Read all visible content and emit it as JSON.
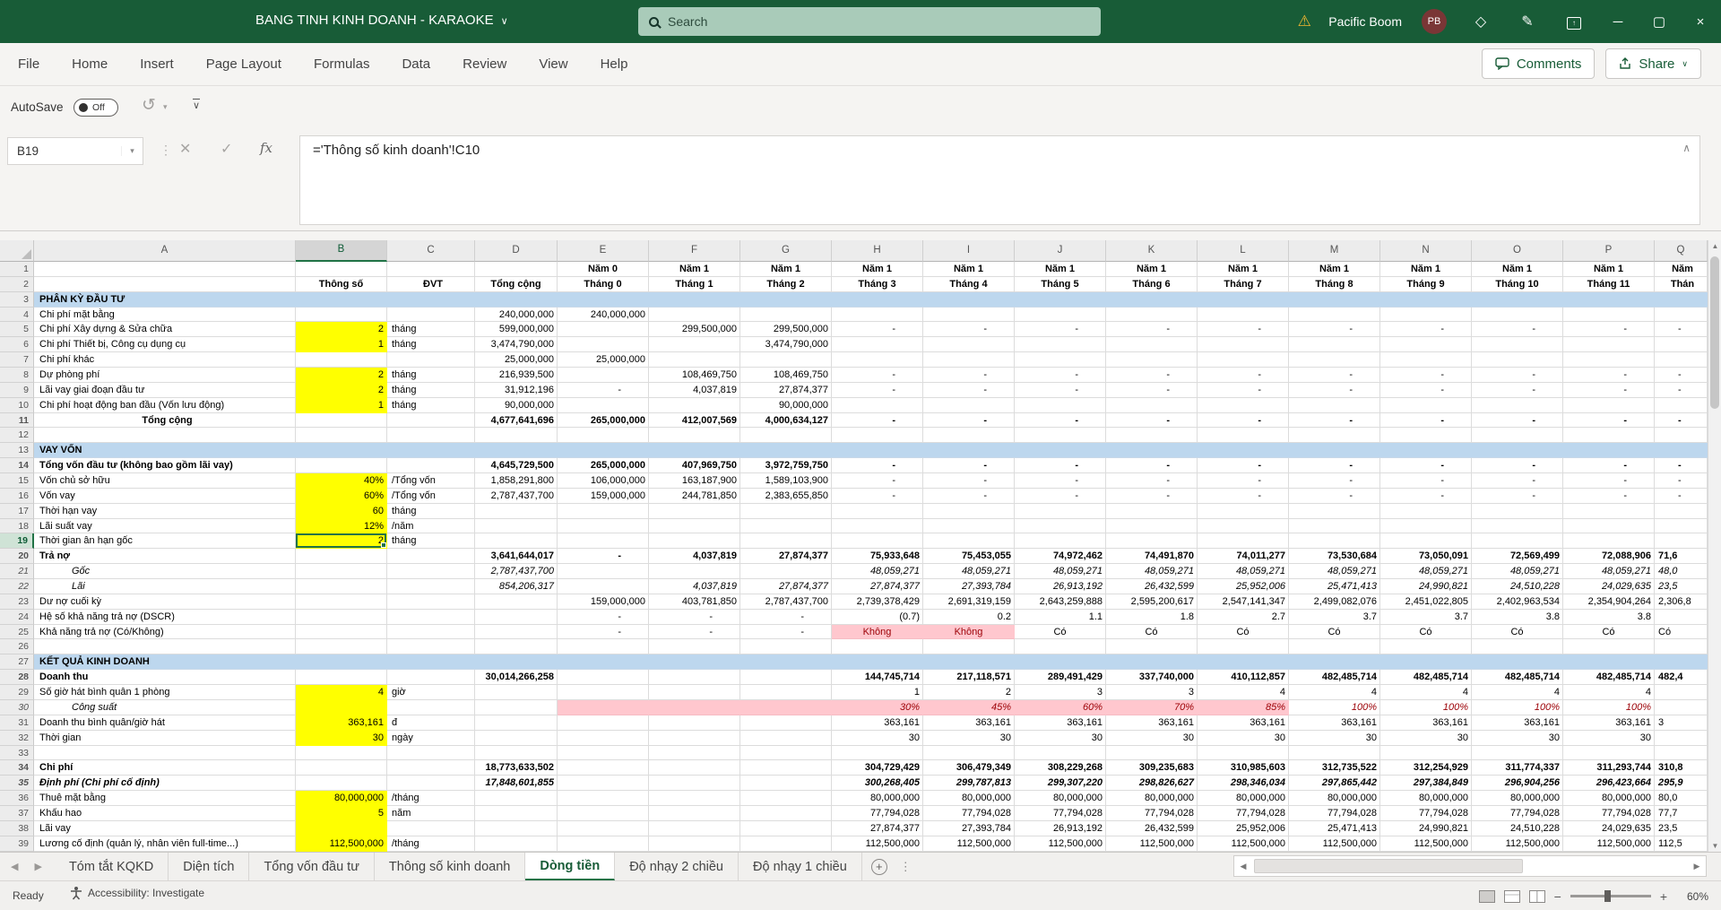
{
  "titlebar": {
    "title": "BANG TINH KINH DOANH - KARAOKE",
    "search_placeholder": "Search",
    "user_name": "Pacific Boom",
    "avatar_initials": "PB"
  },
  "menubar": {
    "tabs": [
      "File",
      "Home",
      "Insert",
      "Page Layout",
      "Formulas",
      "Data",
      "Review",
      "View",
      "Help"
    ],
    "comments_label": "Comments",
    "share_label": "Share"
  },
  "quickbar": {
    "autosave_label": "AutoSave",
    "autosave_state": "Off"
  },
  "formula_bar": {
    "name_box": "B19",
    "formula": "='Thông số kinh doanh'!C10"
  },
  "glyphs": {
    "warning": "⚠",
    "gem": "◇",
    "pen": "✎",
    "ribbon_arrow": "↑",
    "minimize": "─",
    "restore": "▢",
    "close": "×",
    "chevron_down": "∨",
    "chevron_small": "▾",
    "collapse": "∧",
    "undo": "↺",
    "dots_v": "⋮",
    "cancel": "✕",
    "check": "✓",
    "fx": "fx",
    "left": "◀",
    "right": "▶",
    "up": "▲",
    "down": "▼",
    "plus": "+",
    "minus": "−"
  },
  "colors": {
    "excel_green": "#217346",
    "titlebar_green": "#185c37",
    "section_blue": "#BDD7EE",
    "input_yellow": "#FFFF00",
    "bad_pink": "#FFC7CE",
    "bad_red": "#9C0006"
  },
  "grid": {
    "columns": [
      "A",
      "B",
      "C",
      "D",
      "E",
      "F",
      "G",
      "H",
      "I",
      "J",
      "K",
      "L",
      "M",
      "N",
      "O",
      "P",
      "Q"
    ],
    "selected_column": "B",
    "selected_row": 19,
    "rows": [
      {
        "n": 1,
        "f": {
          "h": 1
        },
        "v": [
          "Năm 0",
          "Năm 1",
          "Năm 1",
          "Năm 1",
          "Năm 1",
          "Năm 1",
          "Năm 1",
          "Năm 1",
          "Năm 1",
          "Năm 1",
          "Năm 1",
          "Năm 1"
        ],
        "q": "Năm"
      },
      {
        "n": 2,
        "f": {
          "h": 1
        },
        "b": "Thông số",
        "c": "ĐVT",
        "d": "Tổng cộng",
        "v": [
          "Tháng 0",
          "Tháng 1",
          "Tháng 2",
          "Tháng 3",
          "Tháng 4",
          "Tháng 5",
          "Tháng 6",
          "Tháng 7",
          "Tháng 8",
          "Tháng 9",
          "Tháng 10",
          "Tháng 11"
        ],
        "q": "Thán"
      },
      {
        "n": 3,
        "f": {
          "s": 1
        },
        "a": "PHÂN KỲ ĐẦU TƯ"
      },
      {
        "n": 4,
        "a": "Chi phí mặt bằng",
        "d": "240,000,000",
        "v": [
          "240,000,000",
          "",
          "",
          "",
          "",
          "",
          "",
          "",
          "",
          "",
          "",
          ""
        ]
      },
      {
        "n": 5,
        "a": "Chi phí Xây dựng & Sửa chữa",
        "f": {
          "yb": 1
        },
        "b": "2",
        "c": "tháng",
        "d": "599,000,000",
        "v": [
          "",
          "299,500,000",
          "299,500,000",
          "-",
          "-",
          "-",
          "-",
          "-",
          "-",
          "-",
          "-",
          "-"
        ],
        "q": "-"
      },
      {
        "n": 6,
        "a": "Chi phí Thiết bị, Công cụ dụng cụ",
        "f": {
          "yb": 1
        },
        "b": "1",
        "c": "tháng",
        "d": "3,474,790,000",
        "v": [
          "",
          "",
          "3,474,790,000",
          "",
          "",
          "",
          "",
          "",
          "",
          "",
          "",
          ""
        ]
      },
      {
        "n": 7,
        "a": "Chi phí khác",
        "d": "25,000,000",
        "v": [
          "25,000,000",
          "",
          "",
          "",
          "",
          "",
          "",
          "",
          "",
          "",
          "",
          ""
        ]
      },
      {
        "n": 8,
        "a": "Dự phòng phí",
        "f": {
          "yb": 1
        },
        "b": "2",
        "c": "tháng",
        "d": "216,939,500",
        "v": [
          "",
          "108,469,750",
          "108,469,750",
          "-",
          "-",
          "-",
          "-",
          "-",
          "-",
          "-",
          "-",
          "-"
        ],
        "q": "-"
      },
      {
        "n": 9,
        "a": "Lãi vay giai đoạn đầu tư",
        "f": {
          "yb": 1
        },
        "b": "2",
        "c": "tháng",
        "d": "31,912,196",
        "v": [
          "-",
          "4,037,819",
          "27,874,377",
          "-",
          "-",
          "-",
          "-",
          "-",
          "-",
          "-",
          "-",
          "-"
        ],
        "q": "-"
      },
      {
        "n": 10,
        "a": "Chi phí hoạt động ban đầu (Vốn lưu động)",
        "f": {
          "yb": 1
        },
        "b": "1",
        "c": "tháng",
        "d": "90,000,000",
        "v": [
          "",
          "",
          "90,000,000",
          "",
          "",
          "",
          "",
          "",
          "",
          "",
          "",
          ""
        ]
      },
      {
        "n": 11,
        "a": "Tổng cộng",
        "f": {
          "b": 1,
          "ac": 1
        },
        "d": "4,677,641,696",
        "v": [
          "265,000,000",
          "412,007,569",
          "4,000,634,127",
          "-",
          "-",
          "-",
          "-",
          "-",
          "-",
          "-",
          "-",
          "-"
        ],
        "q": "-"
      },
      {
        "n": 12
      },
      {
        "n": 13,
        "f": {
          "s": 1
        },
        "a": "VAY VỐN"
      },
      {
        "n": 14,
        "a": "Tổng vốn đầu tư (không bao gồm lãi vay)",
        "f": {
          "b": 1
        },
        "d": "4,645,729,500",
        "v": [
          "265,000,000",
          "407,969,750",
          "3,972,759,750",
          "-",
          "-",
          "-",
          "-",
          "-",
          "-",
          "-",
          "-",
          "-"
        ],
        "q": "-"
      },
      {
        "n": 15,
        "a": "Vốn chủ sở hữu",
        "f": {
          "yb": 1
        },
        "b": "40%",
        "c": "/Tổng vốn",
        "d": "1,858,291,800",
        "v": [
          "106,000,000",
          "163,187,900",
          "1,589,103,900",
          "-",
          "-",
          "-",
          "-",
          "-",
          "-",
          "-",
          "-",
          "-"
        ],
        "q": "-"
      },
      {
        "n": 16,
        "a": "Vốn vay",
        "f": {
          "yb": 1
        },
        "b": "60%",
        "c": "/Tổng vốn",
        "d": "2,787,437,700",
        "v": [
          "159,000,000",
          "244,781,850",
          "2,383,655,850",
          "-",
          "-",
          "-",
          "-",
          "-",
          "-",
          "-",
          "-",
          "-"
        ],
        "q": "-"
      },
      {
        "n": 17,
        "a": "Thời hạn vay",
        "f": {
          "yb": 1
        },
        "b": "60",
        "c": "tháng"
      },
      {
        "n": 18,
        "a": "Lãi suất vay",
        "f": {
          "yb": 1
        },
        "b": "12%",
        "c": "/năm"
      },
      {
        "n": 19,
        "a": "Thời gian ân hạn gốc",
        "f": {
          "yb": 1,
          "sb": 1
        },
        "b": "2",
        "c": "tháng"
      },
      {
        "n": 20,
        "a": "Trả nợ",
        "f": {
          "b": 1
        },
        "d": "3,641,644,017",
        "v": [
          "-",
          "4,037,819",
          "27,874,377",
          "75,933,648",
          "75,453,055",
          "74,972,462",
          "74,491,870",
          "74,011,277",
          "73,530,684",
          "73,050,091",
          "72,569,499",
          "72,088,906"
        ],
        "q": "71,6"
      },
      {
        "n": 21,
        "a": "Gốc",
        "f": {
          "i": 1,
          "ind": 1
        },
        "d": "2,787,437,700",
        "v": [
          "",
          "",
          "",
          "48,059,271",
          "48,059,271",
          "48,059,271",
          "48,059,271",
          "48,059,271",
          "48,059,271",
          "48,059,271",
          "48,059,271",
          "48,059,271"
        ],
        "q": "48,0"
      },
      {
        "n": 22,
        "a": "Lãi",
        "f": {
          "i": 1,
          "ind": 1
        },
        "d": "854,206,317",
        "v": [
          "",
          "4,037,819",
          "27,874,377",
          "27,874,377",
          "27,393,784",
          "26,913,192",
          "26,432,599",
          "25,952,006",
          "25,471,413",
          "24,990,821",
          "24,510,228",
          "24,029,635"
        ],
        "q": "23,5"
      },
      {
        "n": 23,
        "a": "Dư nợ cuối kỳ",
        "v": [
          "159,000,000",
          "403,781,850",
          "2,787,437,700",
          "2,739,378,429",
          "2,691,319,159",
          "2,643,259,888",
          "2,595,200,617",
          "2,547,141,347",
          "2,499,082,076",
          "2,451,022,805",
          "2,402,963,534",
          "2,354,904,264"
        ],
        "q": "2,306,8"
      },
      {
        "n": 24,
        "a": "Hệ số khả năng trả nợ (DSCR)",
        "v": [
          "-",
          "-",
          "-",
          "(0.7)",
          "0.2",
          "1.1",
          "1.8",
          "2.7",
          "3.7",
          "3.7",
          "3.8",
          "3.8"
        ]
      },
      {
        "n": 25,
        "a": "Khả năng trả nợ (Có/Không)",
        "f": {
          "ctrv": [
            3,
            4,
            5,
            6,
            7,
            8,
            9,
            10,
            11
          ],
          "pink": [
            3,
            4
          ],
          "redv": [
            3,
            4
          ]
        },
        "v": [
          "-",
          "-",
          "-",
          "Không",
          "Không",
          "Có",
          "Có",
          "Có",
          "Có",
          "Có",
          "Có",
          "Có"
        ],
        "q": "Có"
      },
      {
        "n": 26
      },
      {
        "n": 27,
        "f": {
          "s": 1
        },
        "a": "KẾT QUẢ KINH DOANH"
      },
      {
        "n": 28,
        "a": "Doanh thu",
        "f": {
          "b": 1
        },
        "d": "30,014,266,258",
        "v": [
          "",
          "",
          "",
          "144,745,714",
          "217,118,571",
          "289,491,429",
          "337,740,000",
          "410,112,857",
          "482,485,714",
          "482,485,714",
          "482,485,714",
          "482,485,714"
        ],
        "q": "482,4"
      },
      {
        "n": 29,
        "a": "Số giờ hát bình quân 1 phòng",
        "f": {
          "yb": 1
        },
        "b": "4",
        "c": "giờ",
        "v": [
          "",
          "",
          "",
          "1",
          "2",
          "3",
          "3",
          "4",
          "4",
          "4",
          "4",
          "4"
        ]
      },
      {
        "n": 30,
        "a": "Công suất",
        "f": {
          "i": 1,
          "ind": 1,
          "yb": 1,
          "pink": [
            0,
            1,
            2,
            3,
            4,
            5,
            6,
            7
          ],
          "redv": [
            3,
            4,
            5,
            6,
            7,
            8,
            9,
            10,
            11
          ]
        },
        "b": "",
        "v": [
          "",
          "",
          "",
          "30%",
          "45%",
          "60%",
          "70%",
          "85%",
          "100%",
          "100%",
          "100%",
          "100%"
        ]
      },
      {
        "n": 31,
        "a": "Doanh thu bình quân/giờ hát",
        "f": {
          "yb": 1
        },
        "b": "363,161",
        "c": "đ",
        "v": [
          "",
          "",
          "",
          "363,161",
          "363,161",
          "363,161",
          "363,161",
          "363,161",
          "363,161",
          "363,161",
          "363,161",
          "363,161"
        ],
        "q": "3"
      },
      {
        "n": 32,
        "a": "Thời gian",
        "f": {
          "yb": 1
        },
        "b": "30",
        "c": "ngày",
        "v": [
          "",
          "",
          "",
          "30",
          "30",
          "30",
          "30",
          "30",
          "30",
          "30",
          "30",
          "30"
        ]
      },
      {
        "n": 33
      },
      {
        "n": 34,
        "a": "Chi phí",
        "f": {
          "b": 1
        },
        "d": "18,773,633,502",
        "v": [
          "",
          "",
          "",
          "304,729,429",
          "306,479,349",
          "308,229,268",
          "309,235,683",
          "310,985,603",
          "312,735,522",
          "312,254,929",
          "311,774,337",
          "311,293,744"
        ],
        "q": "310,8"
      },
      {
        "n": 35,
        "a": "Định phí (Chi phí cố định)",
        "f": {
          "bi": 1
        },
        "d": "17,848,601,855",
        "v": [
          "",
          "",
          "",
          "300,268,405",
          "299,787,813",
          "299,307,220",
          "298,826,627",
          "298,346,034",
          "297,865,442",
          "297,384,849",
          "296,904,256",
          "296,423,664"
        ],
        "q": "295,9"
      },
      {
        "n": 36,
        "a": "Thuê mặt bằng",
        "f": {
          "yb": 1
        },
        "b": "80,000,000",
        "c": "/tháng",
        "v": [
          "",
          "",
          "",
          "80,000,000",
          "80,000,000",
          "80,000,000",
          "80,000,000",
          "80,000,000",
          "80,000,000",
          "80,000,000",
          "80,000,000",
          "80,000,000"
        ],
        "q": "80,0"
      },
      {
        "n": 37,
        "a": "Khấu hao",
        "f": {
          "yb": 1
        },
        "b": "5",
        "c": "năm",
        "v": [
          "",
          "",
          "",
          "77,794,028",
          "77,794,028",
          "77,794,028",
          "77,794,028",
          "77,794,028",
          "77,794,028",
          "77,794,028",
          "77,794,028",
          "77,794,028"
        ],
        "q": "77,7"
      },
      {
        "n": 38,
        "a": "Lãi vay",
        "f": {
          "yb": 1
        },
        "b": "",
        "v": [
          "",
          "",
          "",
          "27,874,377",
          "27,393,784",
          "26,913,192",
          "26,432,599",
          "25,952,006",
          "25,471,413",
          "24,990,821",
          "24,510,228",
          "24,029,635"
        ],
        "q": "23,5"
      },
      {
        "n": 39,
        "a": "Lương cố định (quản lý, nhân viên full-time...)",
        "f": {
          "yb": 1
        },
        "b": "112,500,000",
        "c": "/tháng",
        "v": [
          "",
          "",
          "",
          "112,500,000",
          "112,500,000",
          "112,500,000",
          "112,500,000",
          "112,500,000",
          "112,500,000",
          "112,500,000",
          "112,500,000",
          "112,500,000"
        ],
        "q": "112,5"
      }
    ]
  },
  "sheet_bar": {
    "tabs": [
      "Tóm tắt KQKD",
      "Diện tích",
      "Tổng vốn đầu tư",
      "Thông số kinh doanh",
      "Dòng tiền",
      "Độ nhạy 2 chiều",
      "Độ nhạy 1 chiều"
    ],
    "active_tab": "Dòng tiền"
  },
  "status_bar": {
    "ready": "Ready",
    "accessibility": "Accessibility: Investigate",
    "zoom_level": "60%"
  }
}
